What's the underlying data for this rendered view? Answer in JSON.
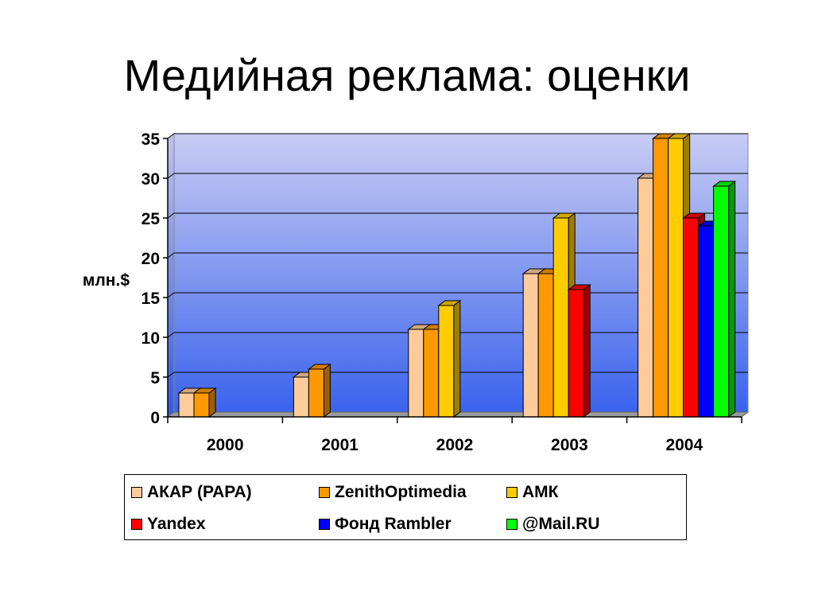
{
  "title": "Медийная реклама: оценки",
  "chart_data": {
    "type": "bar",
    "categories": [
      "2000",
      "2001",
      "2002",
      "2003",
      "2004"
    ],
    "series": [
      {
        "name": "АКАР (РАРА)",
        "color": "#FFCC99",
        "values": [
          3,
          5,
          11,
          18,
          30
        ]
      },
      {
        "name": "ZenithOptimedia",
        "color": "#FF9900",
        "values": [
          3,
          6,
          11,
          18,
          35
        ]
      },
      {
        "name": "АМК",
        "color": "#FFCC00",
        "values": [
          null,
          null,
          14,
          25,
          35
        ]
      },
      {
        "name": "Yandex",
        "color": "#FF0000",
        "values": [
          null,
          null,
          null,
          16,
          25
        ]
      },
      {
        "name": "Фонд Rambler",
        "color": "#0000FF",
        "values": [
          null,
          null,
          null,
          null,
          24
        ]
      },
      {
        "name": "@Mail.RU",
        "color": "#00FF00",
        "values": [
          null,
          null,
          null,
          null,
          29
        ]
      }
    ],
    "yticks": [
      "0",
      "5",
      "10",
      "15",
      "20",
      "25",
      "30",
      "35"
    ],
    "ylabel": "млн.$",
    "xlabel": "",
    "ylim": [
      0,
      35
    ],
    "grid": true,
    "legend_position": "bottom"
  }
}
